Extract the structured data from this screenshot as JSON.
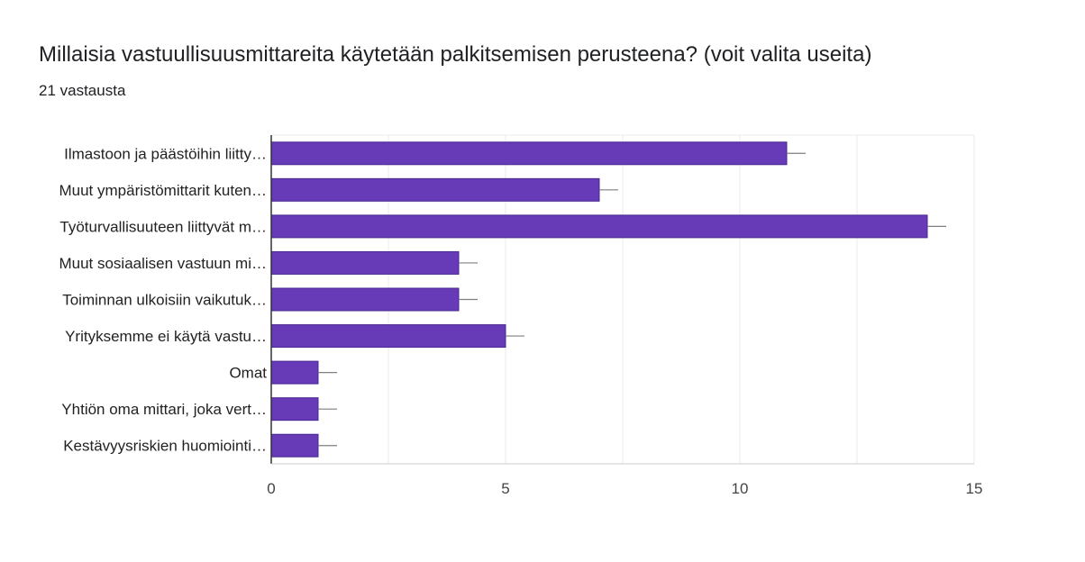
{
  "page": {
    "title": "Millaisia vastuullisuusmittareita käytetään palkitsemisen perusteena? (voit valita useita)",
    "subtitle": "21 vastausta"
  },
  "chart_data": {
    "type": "bar",
    "orientation": "horizontal",
    "categories": [
      "Ilmastoon ja päästöihin liitty…",
      "Muut ympäristömittarit kuten…",
      "Työturvallisuuteen liittyvät m…",
      "Muut sosiaalisen vastuun mi…",
      "Toiminnan ulkoisiin vaikutuk…",
      "Yrityksemme ei käytä vastu…",
      "Omat",
      "Yhtiön oma mittari, joka vert…",
      "Kestävyysriskien huomiointi…"
    ],
    "values": [
      11,
      7,
      14,
      4,
      4,
      5,
      1,
      1,
      1
    ],
    "xlim": [
      0,
      15
    ],
    "xticks": [
      "0",
      "5",
      "10",
      "15"
    ],
    "grid": true,
    "bar_color": "#673ab7",
    "bar_edge_color": "#4a2a91",
    "grid_color": "#ebebeb",
    "error_bar_color": "#7f7f7f"
  }
}
